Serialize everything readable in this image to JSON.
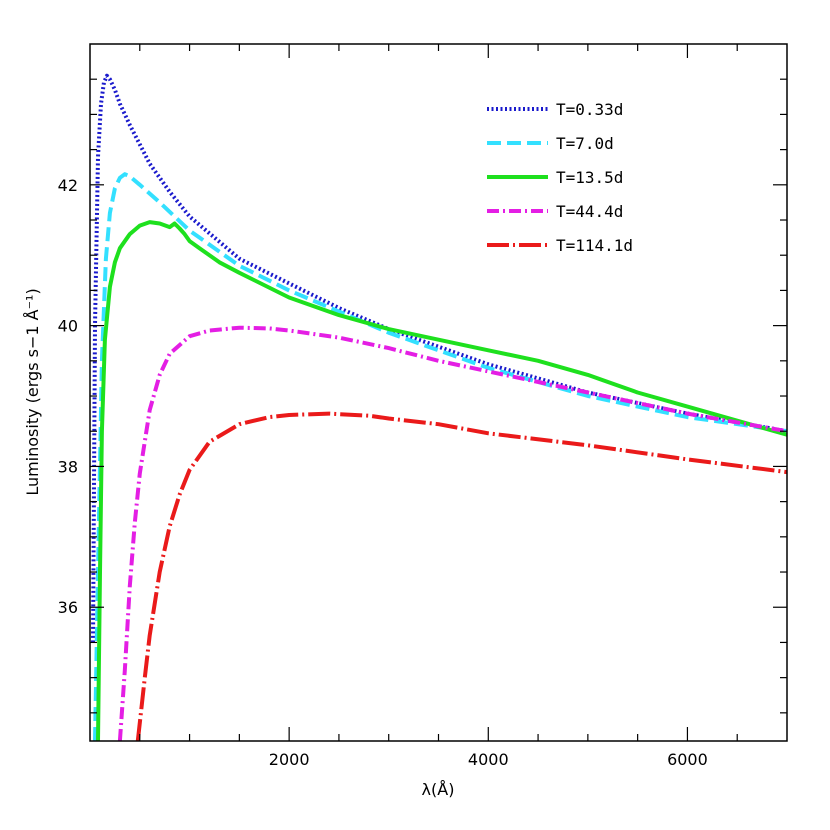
{
  "chart_data": {
    "type": "line",
    "title": "",
    "xlabel": "λ(Å)",
    "ylabel": "Luminosity (ergs s−1 Å⁻¹)",
    "xlim": [
      0,
      7000
    ],
    "ylim": [
      34.1,
      44.0
    ],
    "x_ticks": [
      2000,
      4000,
      6000
    ],
    "y_ticks": [
      36,
      38,
      40,
      42
    ],
    "grid": false,
    "legend_position": "top-right",
    "series": [
      {
        "name": "T=0.33d",
        "color": "#1a1acc",
        "style": "dotted",
        "x": [
          30,
          50,
          80,
          110,
          140,
          170,
          200,
          250,
          300,
          400,
          600,
          800,
          1000,
          1500,
          2000,
          2500,
          3000,
          3500,
          4000,
          5000,
          6000,
          7000
        ],
        "y": [
          35.5,
          40.0,
          42.4,
          43.15,
          43.45,
          43.55,
          43.5,
          43.35,
          43.15,
          42.85,
          42.3,
          41.9,
          41.55,
          40.95,
          40.6,
          40.25,
          39.95,
          39.7,
          39.45,
          39.05,
          38.75,
          38.5
        ]
      },
      {
        "name": "T=7.0d",
        "color": "#33e0ff",
        "style": "dashed",
        "x": [
          50,
          80,
          120,
          160,
          200,
          250,
          300,
          350,
          400,
          500,
          700,
          1000,
          1500,
          2000,
          2500,
          3000,
          3500,
          4000,
          5000,
          6000,
          7000
        ],
        "y": [
          34.1,
          36.5,
          39.5,
          40.95,
          41.6,
          41.95,
          42.1,
          42.15,
          42.12,
          42.0,
          41.75,
          41.35,
          40.85,
          40.5,
          40.2,
          39.9,
          39.65,
          39.4,
          39.0,
          38.7,
          38.5
        ]
      },
      {
        "name": "T=13.5d",
        "color": "#1ee01e",
        "style": "solid",
        "x": [
          80,
          100,
          120,
          150,
          200,
          250,
          300,
          400,
          500,
          600,
          700,
          800,
          850,
          900,
          950,
          1000,
          1100,
          1300,
          1500,
          2000,
          2500,
          3000,
          3500,
          4000,
          4500,
          5000,
          5500,
          6000,
          6500,
          7000
        ],
        "y": [
          34.1,
          36.5,
          38.5,
          39.8,
          40.55,
          40.9,
          41.1,
          41.3,
          41.42,
          41.47,
          41.45,
          41.4,
          41.45,
          41.38,
          41.3,
          41.2,
          41.1,
          40.9,
          40.75,
          40.4,
          40.15,
          39.95,
          39.8,
          39.65,
          39.5,
          39.3,
          39.05,
          38.85,
          38.65,
          38.45
        ]
      },
      {
        "name": "T=44.4d",
        "color": "#e41ee4",
        "style": "dashdot",
        "x": [
          300,
          350,
          400,
          450,
          500,
          600,
          700,
          800,
          1000,
          1200,
          1500,
          1800,
          2000,
          2500,
          3000,
          3500,
          4000,
          5000,
          6000,
          7000
        ],
        "y": [
          34.1,
          35.1,
          36.3,
          37.2,
          37.9,
          38.8,
          39.3,
          39.6,
          39.85,
          39.93,
          39.97,
          39.96,
          39.93,
          39.83,
          39.68,
          39.5,
          39.35,
          39.05,
          38.75,
          38.5
        ]
      },
      {
        "name": "T=114.1d",
        "color": "#ea1a1a",
        "style": "longdashdot",
        "x": [
          480,
          550,
          600,
          700,
          800,
          900,
          1000,
          1200,
          1500,
          1800,
          2000,
          2400,
          2800,
          3000,
          3500,
          4000,
          5000,
          6000,
          7000
        ],
        "y": [
          34.1,
          35.0,
          35.6,
          36.5,
          37.15,
          37.6,
          37.95,
          38.35,
          38.6,
          38.7,
          38.73,
          38.75,
          38.72,
          38.68,
          38.6,
          38.47,
          38.3,
          38.1,
          37.92
        ]
      }
    ]
  }
}
